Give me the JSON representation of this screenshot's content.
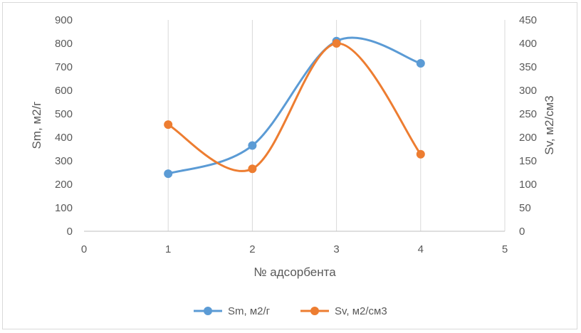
{
  "chart_data": {
    "type": "scatter",
    "title": "",
    "xlabel": "№ адсорбента",
    "ylabel": "Sm, м2/г",
    "y2label": "Sv, м2/см3",
    "xlim": [
      0,
      5
    ],
    "ylim": [
      0,
      900
    ],
    "y2lim": [
      0,
      450
    ],
    "x_ticks": [
      "0",
      "1",
      "2",
      "3",
      "4",
      "5"
    ],
    "y_ticks": [
      "0",
      "100",
      "200",
      "300",
      "400",
      "500",
      "600",
      "700",
      "800",
      "900"
    ],
    "y2_ticks": [
      "0",
      "50",
      "100",
      "150",
      "200",
      "250",
      "300",
      "350",
      "400",
      "450"
    ],
    "grid": "vertical",
    "legend": "bottom",
    "smooth": true,
    "series": [
      {
        "name": "Sm, м2/г",
        "axis": "left",
        "color": "#5b9bd5",
        "x": [
          1,
          2,
          3,
          4
        ],
        "y": [
          245,
          365,
          810,
          715
        ]
      },
      {
        "name": "Sv, м2/см3",
        "axis": "right",
        "color": "#ed7d31",
        "x": [
          1,
          2,
          3,
          4
        ],
        "y": [
          227,
          133,
          400,
          164
        ]
      }
    ]
  }
}
